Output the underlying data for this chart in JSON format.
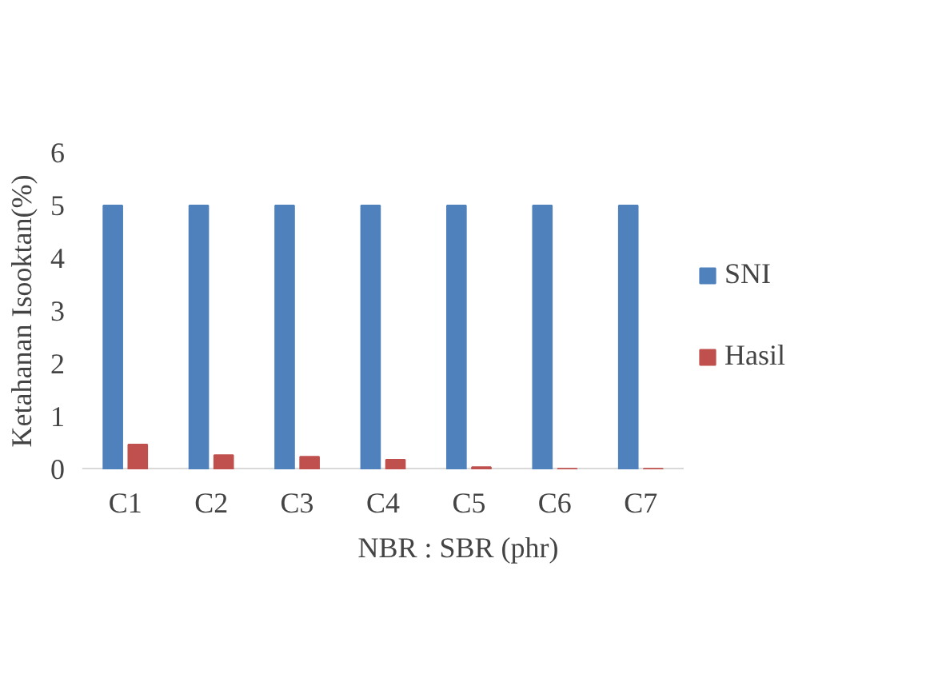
{
  "chart_data": {
    "type": "bar",
    "xlabel": "NBR : SBR (phr)",
    "ylabel": "Ketahanan Isooktan(%)",
    "categories": [
      "C1",
      "C2",
      "C3",
      "C4",
      "C5",
      "C6",
      "C7"
    ],
    "series": [
      {
        "name": "SNI",
        "color": "#4f81bd",
        "values": [
          5,
          5,
          5,
          5,
          5,
          5,
          5
        ]
      },
      {
        "name": "Hasil",
        "color": "#c0504d",
        "values": [
          0.47,
          0.27,
          0.24,
          0.18,
          0.04,
          0.01,
          0.01
        ]
      }
    ],
    "ylim": [
      0,
      6
    ],
    "yticks": [
      0,
      1,
      2,
      3,
      4,
      5,
      6
    ],
    "grid": false,
    "legend": "right"
  }
}
